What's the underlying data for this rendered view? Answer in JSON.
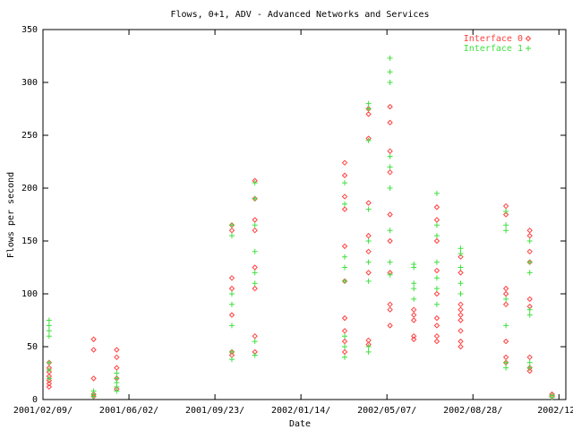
{
  "chart_data": {
    "type": "scatter",
    "title": "Flows, 0+1, ADV - Advanced Networks and Services",
    "xlabel": "Date",
    "ylabel": "Flows per second",
    "xlim": [
      0,
      681
    ],
    "ylim": [
      0,
      350
    ],
    "xticks": [
      {
        "value": 0,
        "label": "2001/02/09/"
      },
      {
        "value": 112,
        "label": "2001/06/02/"
      },
      {
        "value": 224,
        "label": "2001/09/23/"
      },
      {
        "value": 336,
        "label": "2002/01/14/"
      },
      {
        "value": 448,
        "label": "2002/05/07/"
      },
      {
        "value": 560,
        "label": "2002/08/28/"
      },
      {
        "value": 672,
        "label": "2002/12/"
      }
    ],
    "yticks": [
      0,
      50,
      100,
      150,
      200,
      250,
      300,
      350
    ],
    "grid": false,
    "legend": "upper right",
    "series": [
      {
        "name": "Interface 0",
        "color": "#ff4040",
        "marker": "diamond",
        "x": [
          8,
          8,
          8,
          8,
          8,
          8,
          8,
          66,
          66,
          66,
          66,
          66,
          96,
          96,
          96,
          96,
          96,
          246,
          246,
          246,
          246,
          246,
          246,
          246,
          276,
          276,
          276,
          276,
          276,
          276,
          276,
          276,
          393,
          393,
          393,
          393,
          393,
          393,
          393,
          393,
          393,
          393,
          424,
          424,
          424,
          424,
          424,
          424,
          424,
          424,
          424,
          452,
          452,
          452,
          452,
          452,
          452,
          452,
          452,
          452,
          452,
          483,
          483,
          483,
          483,
          483,
          513,
          513,
          513,
          513,
          513,
          513,
          513,
          513,
          513,
          544,
          544,
          544,
          544,
          544,
          544,
          544,
          544,
          544,
          603,
          603,
          603,
          603,
          603,
          603,
          603,
          603,
          634,
          634,
          634,
          634,
          634,
          634,
          634,
          634,
          634,
          663,
          663
        ],
        "values": [
          12,
          15,
          18,
          22,
          26,
          30,
          35,
          57,
          47,
          20,
          5,
          3,
          47,
          40,
          30,
          20,
          10,
          165,
          160,
          115,
          105,
          80,
          45,
          42,
          207,
          190,
          170,
          160,
          125,
          105,
          60,
          45,
          224,
          212,
          192,
          180,
          145,
          112,
          77,
          65,
          55,
          45,
          275,
          270,
          247,
          186,
          155,
          140,
          120,
          56,
          52,
          277,
          262,
          235,
          215,
          175,
          150,
          120,
          90,
          85,
          70,
          85,
          80,
          75,
          60,
          57,
          182,
          170,
          150,
          122,
          100,
          77,
          70,
          60,
          55,
          135,
          120,
          90,
          85,
          80,
          75,
          65,
          55,
          50,
          183,
          175,
          105,
          100,
          90,
          55,
          40,
          35,
          160,
          155,
          140,
          130,
          95,
          88,
          40,
          30,
          27,
          3,
          5
        ]
      },
      {
        "name": "Interface 1",
        "color": "#40e040",
        "marker": "plus",
        "x": [
          8,
          8,
          8,
          8,
          8,
          8,
          8,
          66,
          66,
          66,
          96,
          96,
          96,
          96,
          96,
          246,
          246,
          246,
          246,
          246,
          246,
          246,
          276,
          276,
          276,
          276,
          276,
          276,
          276,
          276,
          393,
          393,
          393,
          393,
          393,
          393,
          393,
          393,
          424,
          424,
          424,
          424,
          424,
          424,
          424,
          424,
          424,
          452,
          452,
          452,
          452,
          452,
          452,
          452,
          452,
          452,
          483,
          483,
          483,
          483,
          483,
          513,
          513,
          513,
          513,
          513,
          513,
          513,
          544,
          544,
          544,
          544,
          544,
          603,
          603,
          603,
          603,
          603,
          603,
          603,
          634,
          634,
          634,
          634,
          634,
          634,
          634,
          663,
          663
        ],
        "values": [
          20,
          28,
          35,
          60,
          65,
          70,
          75,
          3,
          5,
          8,
          8,
          12,
          16,
          20,
          25,
          165,
          155,
          100,
          90,
          70,
          45,
          38,
          205,
          190,
          165,
          140,
          120,
          110,
          55,
          42,
          205,
          185,
          135,
          125,
          112,
          60,
          50,
          40,
          280,
          275,
          245,
          180,
          150,
          130,
          112,
          50,
          45,
          323,
          310,
          300,
          230,
          220,
          200,
          160,
          130,
          118,
          128,
          125,
          110,
          105,
          95,
          195,
          165,
          155,
          130,
          115,
          105,
          90,
          143,
          138,
          125,
          110,
          100,
          178,
          165,
          160,
          95,
          70,
          35,
          30,
          150,
          130,
          120,
          85,
          80,
          35,
          30,
          2,
          4
        ]
      }
    ]
  }
}
